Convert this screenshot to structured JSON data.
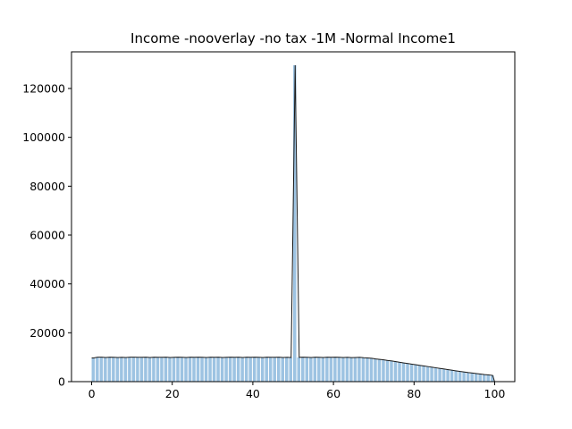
{
  "chart_data": {
    "type": "bar",
    "title": "Income -nooverlay -no tax -1M -Normal Income1",
    "xlabel": "",
    "ylabel": "",
    "xlim": [
      -5,
      105
    ],
    "ylim": [
      0,
      135000
    ],
    "x_ticks": [
      0,
      20,
      40,
      60,
      80,
      100
    ],
    "y_ticks": [
      0,
      20000,
      40000,
      60000,
      80000,
      100000,
      120000
    ],
    "grid": false,
    "bar_color": "#9dc3e2",
    "outline_color": "#1a1a1a",
    "bins": [
      {
        "x": 0,
        "value": 9700
      },
      {
        "x": 1,
        "value": 10000
      },
      {
        "x": 2,
        "value": 10000
      },
      {
        "x": 3,
        "value": 9900
      },
      {
        "x": 4,
        "value": 10000
      },
      {
        "x": 5,
        "value": 9950
      },
      {
        "x": 6,
        "value": 9900
      },
      {
        "x": 7,
        "value": 9950
      },
      {
        "x": 8,
        "value": 9900
      },
      {
        "x": 9,
        "value": 10000
      },
      {
        "x": 10,
        "value": 10000
      },
      {
        "x": 11,
        "value": 9950
      },
      {
        "x": 12,
        "value": 9950
      },
      {
        "x": 13,
        "value": 10000
      },
      {
        "x": 14,
        "value": 9900
      },
      {
        "x": 15,
        "value": 10000
      },
      {
        "x": 16,
        "value": 9950
      },
      {
        "x": 17,
        "value": 9950
      },
      {
        "x": 18,
        "value": 10000
      },
      {
        "x": 19,
        "value": 9900
      },
      {
        "x": 20,
        "value": 9950
      },
      {
        "x": 21,
        "value": 10000
      },
      {
        "x": 22,
        "value": 9950
      },
      {
        "x": 23,
        "value": 9900
      },
      {
        "x": 24,
        "value": 10000
      },
      {
        "x": 25,
        "value": 9950
      },
      {
        "x": 26,
        "value": 10000
      },
      {
        "x": 27,
        "value": 9950
      },
      {
        "x": 28,
        "value": 9900
      },
      {
        "x": 29,
        "value": 10000
      },
      {
        "x": 30,
        "value": 9950
      },
      {
        "x": 31,
        "value": 10000
      },
      {
        "x": 32,
        "value": 9900
      },
      {
        "x": 33,
        "value": 9950
      },
      {
        "x": 34,
        "value": 10000
      },
      {
        "x": 35,
        "value": 9950
      },
      {
        "x": 36,
        "value": 10000
      },
      {
        "x": 37,
        "value": 9900
      },
      {
        "x": 38,
        "value": 10000
      },
      {
        "x": 39,
        "value": 9950
      },
      {
        "x": 40,
        "value": 10000
      },
      {
        "x": 41,
        "value": 9950
      },
      {
        "x": 42,
        "value": 9900
      },
      {
        "x": 43,
        "value": 10000
      },
      {
        "x": 44,
        "value": 9950
      },
      {
        "x": 45,
        "value": 9950
      },
      {
        "x": 46,
        "value": 10000
      },
      {
        "x": 47,
        "value": 9900
      },
      {
        "x": 48,
        "value": 9950
      },
      {
        "x": 49,
        "value": 9900
      },
      {
        "x": 50,
        "value": 129500
      },
      {
        "x": 51,
        "value": 9950
      },
      {
        "x": 52,
        "value": 10000
      },
      {
        "x": 53,
        "value": 9950
      },
      {
        "x": 54,
        "value": 9900
      },
      {
        "x": 55,
        "value": 10000
      },
      {
        "x": 56,
        "value": 9950
      },
      {
        "x": 57,
        "value": 9900
      },
      {
        "x": 58,
        "value": 10000
      },
      {
        "x": 59,
        "value": 9950
      },
      {
        "x": 60,
        "value": 10000
      },
      {
        "x": 61,
        "value": 9950
      },
      {
        "x": 62,
        "value": 9900
      },
      {
        "x": 63,
        "value": 9950
      },
      {
        "x": 64,
        "value": 9850
      },
      {
        "x": 65,
        "value": 9900
      },
      {
        "x": 66,
        "value": 9950
      },
      {
        "x": 67,
        "value": 9800
      },
      {
        "x": 68,
        "value": 9700
      },
      {
        "x": 69,
        "value": 9550
      },
      {
        "x": 70,
        "value": 9300
      },
      {
        "x": 71,
        "value": 9100
      },
      {
        "x": 72,
        "value": 8900
      },
      {
        "x": 73,
        "value": 8650
      },
      {
        "x": 74,
        "value": 8450
      },
      {
        "x": 75,
        "value": 8200
      },
      {
        "x": 76,
        "value": 7900
      },
      {
        "x": 77,
        "value": 7650
      },
      {
        "x": 78,
        "value": 7400
      },
      {
        "x": 79,
        "value": 7150
      },
      {
        "x": 80,
        "value": 6900
      },
      {
        "x": 81,
        "value": 6650
      },
      {
        "x": 82,
        "value": 6400
      },
      {
        "x": 83,
        "value": 6150
      },
      {
        "x": 84,
        "value": 5900
      },
      {
        "x": 85,
        "value": 5650
      },
      {
        "x": 86,
        "value": 5400
      },
      {
        "x": 87,
        "value": 5150
      },
      {
        "x": 88,
        "value": 4900
      },
      {
        "x": 89,
        "value": 4650
      },
      {
        "x": 90,
        "value": 4400
      },
      {
        "x": 91,
        "value": 4150
      },
      {
        "x": 92,
        "value": 3950
      },
      {
        "x": 93,
        "value": 3700
      },
      {
        "x": 94,
        "value": 3500
      },
      {
        "x": 95,
        "value": 3300
      },
      {
        "x": 96,
        "value": 3100
      },
      {
        "x": 97,
        "value": 2900
      },
      {
        "x": 98,
        "value": 2750
      },
      {
        "x": 99,
        "value": 2550
      }
    ]
  }
}
